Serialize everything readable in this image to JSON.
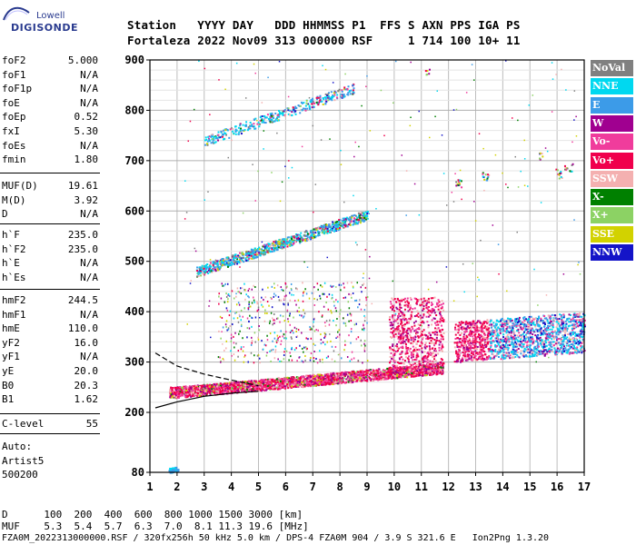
{
  "logo": {
    "line1": "Lowell",
    "line2": "DIGISONDE"
  },
  "header": {
    "row1": "Station   YYYY DAY   DDD HHMMSS P1  FFS S AXN PPS IGA PS",
    "row2": "Fortaleza 2022 Nov09 313 000000 RSF     1 714 100 10+ 11"
  },
  "params_group1": [
    {
      "name": "foF2",
      "value": "5.000"
    },
    {
      "name": "foF1",
      "value": "N/A"
    },
    {
      "name": "foF1p",
      "value": "N/A"
    },
    {
      "name": "foE",
      "value": "N/A"
    },
    {
      "name": "foEp",
      "value": "0.52"
    },
    {
      "name": "fxI",
      "value": "5.30"
    },
    {
      "name": "foEs",
      "value": "N/A"
    },
    {
      "name": "fmin",
      "value": "1.80"
    }
  ],
  "params_group2": [
    {
      "name": "MUF(D)",
      "value": "19.61"
    },
    {
      "name": "M(D)",
      "value": "3.92"
    },
    {
      "name": "D",
      "value": "N/A"
    }
  ],
  "params_group3": [
    {
      "name": "h`F",
      "value": "235.0"
    },
    {
      "name": "h`F2",
      "value": "235.0"
    },
    {
      "name": "h`E",
      "value": "N/A"
    },
    {
      "name": "h`Es",
      "value": "N/A"
    }
  ],
  "params_group4": [
    {
      "name": "hmF2",
      "value": "244.5"
    },
    {
      "name": "hmF1",
      "value": "N/A"
    },
    {
      "name": "hmE",
      "value": "110.0"
    },
    {
      "name": "yF2",
      "value": "16.0"
    },
    {
      "name": "yF1",
      "value": "N/A"
    },
    {
      "name": "yE",
      "value": "20.0"
    },
    {
      "name": "B0",
      "value": "20.3"
    },
    {
      "name": "B1",
      "value": "1.62"
    }
  ],
  "c_level": {
    "name": "C-level",
    "value": "55"
  },
  "auto": {
    "line1": "Auto:",
    "line2": "Artist5",
    "line3": "500200"
  },
  "legend": [
    {
      "label": "NoVal",
      "bg": "#808080",
      "fg": "#ffffff"
    },
    {
      "label": "NNE",
      "bg": "#00d8f0",
      "fg": "#ffffff"
    },
    {
      "label": "E",
      "bg": "#3c9be8",
      "fg": "#ffffff"
    },
    {
      "label": "W",
      "bg": "#a00090",
      "fg": "#ffffff"
    },
    {
      "label": "Vo-",
      "bg": "#f03c9c",
      "fg": "#ffffff"
    },
    {
      "label": "Vo+",
      "bg": "#f0004c",
      "fg": "#ffffff"
    },
    {
      "label": "SSW",
      "bg": "#f4b0b0",
      "fg": "#ffffff"
    },
    {
      "label": "X-",
      "bg": "#008000",
      "fg": "#ffffff"
    },
    {
      "label": "X+",
      "bg": "#8cd264",
      "fg": "#ffffff"
    },
    {
      "label": "SSE",
      "bg": "#d2d200",
      "fg": "#ffffff"
    },
    {
      "label": "NNW",
      "bg": "#1414c8",
      "fg": "#ffffff"
    }
  ],
  "footer": {
    "row1": "D      100  200  400  600  800 1000 1500 3000 [km]",
    "row2": "MUF    5.3  5.4  5.7  6.3  7.0  8.1 11.3 19.6 [MHz]",
    "row3": "FZA0M_2022313000000.RSF / 320fx256h 50 kHz 5.0 km / DPS-4 FZA0M 904 / 3.9 S 321.6 E   Ion2Png 1.3.20"
  },
  "chart_data": {
    "type": "scatter",
    "x_ticks": [
      "1",
      "2",
      "3",
      "4",
      "5",
      "6",
      "7",
      "8",
      "9",
      "10",
      "11",
      "12",
      "13",
      "14",
      "15",
      "16",
      "17"
    ],
    "y_ticks": [
      "80",
      "200",
      "300",
      "400",
      "500",
      "600",
      "700",
      "800",
      "900"
    ],
    "xlim": [
      1,
      17
    ],
    "y_scale": "piecewise (80 at bottom, 200-900 linear)",
    "grid": true,
    "legend_placement": "right",
    "clusters": [
      {
        "mode": "F trace O",
        "x_range": [
          1.7,
          11.8
        ],
        "y_range": [
          230,
          300
        ]
      },
      {
        "mode": "F2 spread",
        "x_range": [
          8.9,
          17
        ],
        "y_range": [
          280,
          440
        ]
      },
      {
        "mode": "2F multihop",
        "x_range": [
          2.7,
          9.0
        ],
        "y_range": [
          470,
          610
        ]
      },
      {
        "mode": "3F multihop",
        "x_range": [
          3.0,
          8.5
        ],
        "y_range": [
          730,
          860
        ]
      },
      {
        "mode": "E low",
        "x_range": [
          1.6,
          2.0
        ],
        "y_range": [
          80,
          95
        ]
      }
    ],
    "model_curves": [
      {
        "name": "o-trace model",
        "points": [
          [
            1.2,
            209
          ],
          [
            2,
            221
          ],
          [
            3,
            232
          ],
          [
            4,
            238
          ],
          [
            5,
            242
          ]
        ]
      },
      {
        "name": "x-trace model",
        "points": [
          [
            1.2,
            318
          ],
          [
            2,
            292
          ],
          [
            3,
            276
          ],
          [
            4,
            264
          ],
          [
            5,
            253
          ]
        ]
      }
    ]
  }
}
